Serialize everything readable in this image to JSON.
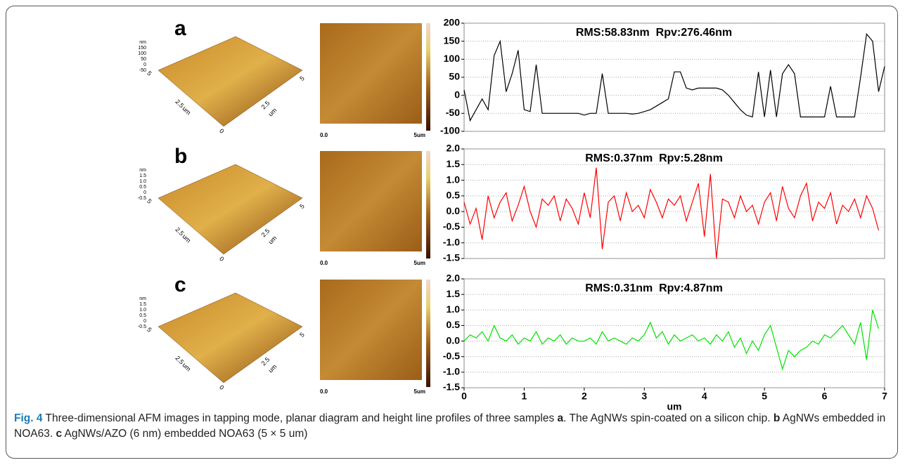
{
  "images": [
    {
      "label": "a",
      "z_labels": [
        "nm",
        "150",
        "100",
        "50",
        "0",
        "-50"
      ],
      "base_labels": [
        "5",
        "2.5",
        "um",
        "0",
        "2.5",
        "um",
        "5"
      ],
      "planar_start": "0.0",
      "planar_end": "5um"
    },
    {
      "label": "b",
      "z_labels": [
        "nm",
        "1.5",
        "1.0",
        "0.5",
        "0",
        "-0.5"
      ],
      "base_labels": [
        "5",
        "2.5",
        "um",
        "0",
        "2.5",
        "um",
        "5"
      ],
      "planar_start": "0.0",
      "planar_end": "5um"
    },
    {
      "label": "c",
      "z_labels": [
        "nm",
        "1.5",
        "1.0",
        "0.5",
        "0",
        "-0.5"
      ],
      "base_labels": [
        "5",
        "2.5",
        "um",
        "0",
        "2.5",
        "um",
        "5"
      ],
      "planar_start": "0.0",
      "planar_end": "5um"
    }
  ],
  "chart_data": [
    {
      "type": "line",
      "annotation": "RMS:58.83nm  Rpv:276.46nm",
      "x": [
        0,
        0.1,
        0.2,
        0.3,
        0.4,
        0.5,
        0.6,
        0.7,
        0.8,
        0.9,
        1,
        1.1,
        1.2,
        1.3,
        1.4,
        1.5,
        1.6,
        1.7,
        1.8,
        1.9,
        2,
        2.1,
        2.2,
        2.3,
        2.4,
        2.5,
        2.6,
        2.7,
        2.8,
        2.9,
        3,
        3.1,
        3.2,
        3.3,
        3.4,
        3.5,
        3.6,
        3.7,
        3.8,
        3.9,
        4,
        4.1,
        4.2,
        4.3,
        4.4,
        4.5,
        4.6,
        4.7,
        4.8,
        4.9,
        5,
        5.1,
        5.2,
        5.3,
        5.4,
        5.5,
        5.6,
        5.7,
        5.8,
        5.9,
        6,
        6.1,
        6.2,
        6.3,
        6.4,
        6.5,
        6.6,
        6.7,
        6.8,
        6.9,
        7
      ],
      "series": [
        {
          "color": "#000000",
          "values": [
            15,
            -70,
            -40,
            -10,
            -40,
            110,
            150,
            10,
            60,
            125,
            -40,
            -45,
            85,
            -50,
            -50,
            -50,
            -50,
            -50,
            -50,
            -50,
            -55,
            -50,
            -50,
            60,
            -50,
            -50,
            -50,
            -50,
            -52,
            -50,
            -45,
            -40,
            -30,
            -20,
            -10,
            65,
            65,
            20,
            15,
            20,
            20,
            20,
            20,
            15,
            0,
            -20,
            -40,
            -55,
            -60,
            65,
            -60,
            70,
            -60,
            60,
            85,
            60,
            -60,
            -60,
            -60,
            -60,
            -60,
            25,
            -60,
            -60,
            -60,
            -60,
            50,
            170,
            150,
            10,
            80
          ]
        }
      ],
      "xlim": [
        0,
        7
      ],
      "ylim": [
        -100,
        200
      ],
      "yticks": [
        -100,
        -50,
        0,
        50,
        100,
        150,
        200
      ],
      "grid": true
    },
    {
      "type": "line",
      "annotation": "RMS:0.37nm  Rpv:5.28nm",
      "x": [
        0,
        0.1,
        0.2,
        0.3,
        0.4,
        0.5,
        0.6,
        0.7,
        0.8,
        0.9,
        1,
        1.1,
        1.2,
        1.3,
        1.4,
        1.5,
        1.6,
        1.7,
        1.8,
        1.9,
        2,
        2.1,
        2.2,
        2.3,
        2.4,
        2.5,
        2.6,
        2.7,
        2.8,
        2.9,
        3,
        3.1,
        3.2,
        3.3,
        3.4,
        3.5,
        3.6,
        3.7,
        3.8,
        3.9,
        4,
        4.1,
        4.2,
        4.3,
        4.4,
        4.5,
        4.6,
        4.7,
        4.8,
        4.9,
        5,
        5.1,
        5.2,
        5.3,
        5.4,
        5.5,
        5.6,
        5.7,
        5.8,
        5.9,
        6,
        6.1,
        6.2,
        6.3,
        6.4,
        6.5,
        6.6,
        6.7,
        6.8,
        6.9
      ],
      "series": [
        {
          "color": "#ff0000",
          "values": [
            0.3,
            -0.4,
            0.1,
            -0.9,
            0.5,
            -0.2,
            0.3,
            0.6,
            -0.3,
            0.2,
            0.8,
            0.0,
            -0.5,
            0.4,
            0.2,
            0.5,
            -0.3,
            0.4,
            0.1,
            -0.4,
            0.6,
            -0.2,
            1.4,
            -1.2,
            0.3,
            0.5,
            -0.3,
            0.6,
            0.0,
            0.2,
            -0.2,
            0.7,
            0.3,
            -0.2,
            0.4,
            0.2,
            0.5,
            -0.3,
            0.3,
            0.9,
            -0.8,
            1.2,
            -1.5,
            0.4,
            0.3,
            -0.2,
            0.5,
            0.0,
            0.2,
            -0.4,
            0.3,
            0.6,
            -0.3,
            0.8,
            0.1,
            -0.2,
            0.5,
            0.9,
            -0.3,
            0.3,
            0.1,
            0.6,
            -0.4,
            0.2,
            0.0,
            0.4,
            -0.2,
            0.5,
            0.1,
            -0.6
          ]
        }
      ],
      "xlim": [
        0,
        7
      ],
      "ylim": [
        -1.5,
        2.0
      ],
      "yticks": [
        {
          "value": -1.5,
          "label": "-1.5"
        },
        {
          "value": -1,
          "label": "-1.0"
        },
        {
          "value": -0.5,
          "label": "-0.5"
        },
        {
          "value": 0,
          "label": "0.0"
        },
        {
          "value": 0.5,
          "label": "0.5"
        },
        {
          "value": 1,
          "label": "1.0"
        },
        {
          "value": 1.5,
          "label": "1.5"
        },
        {
          "value": 2,
          "label": "2.0"
        }
      ],
      "grid": true
    },
    {
      "type": "line",
      "annotation": "RMS:0.31nm  Rpv:4.87nm",
      "xlabel": "um",
      "x": [
        0,
        0.1,
        0.2,
        0.3,
        0.4,
        0.5,
        0.6,
        0.7,
        0.8,
        0.9,
        1,
        1.1,
        1.2,
        1.3,
        1.4,
        1.5,
        1.6,
        1.7,
        1.8,
        1.9,
        2,
        2.1,
        2.2,
        2.3,
        2.4,
        2.5,
        2.6,
        2.7,
        2.8,
        2.9,
        3,
        3.1,
        3.2,
        3.3,
        3.4,
        3.5,
        3.6,
        3.7,
        3.8,
        3.9,
        4,
        4.1,
        4.2,
        4.3,
        4.4,
        4.5,
        4.6,
        4.7,
        4.8,
        4.9,
        5,
        5.1,
        5.2,
        5.3,
        5.4,
        5.5,
        5.6,
        5.7,
        5.8,
        5.9,
        6,
        6.1,
        6.2,
        6.3,
        6.4,
        6.5,
        6.6,
        6.7,
        6.8,
        6.9
      ],
      "series": [
        {
          "color": "#00e000",
          "values": [
            0.0,
            0.2,
            0.1,
            0.3,
            0.0,
            0.5,
            0.1,
            0.0,
            0.2,
            -0.1,
            0.1,
            0.0,
            0.3,
            -0.1,
            0.1,
            0.0,
            0.2,
            -0.1,
            0.1,
            0.0,
            0.0,
            0.1,
            -0.1,
            0.3,
            0.0,
            0.1,
            0.0,
            -0.1,
            0.1,
            0.0,
            0.2,
            0.6,
            0.1,
            0.3,
            -0.1,
            0.2,
            0.0,
            0.1,
            0.2,
            0.0,
            0.1,
            -0.1,
            0.2,
            0.0,
            0.3,
            -0.2,
            0.1,
            -0.4,
            0.0,
            -0.3,
            0.2,
            0.5,
            -0.2,
            -0.9,
            -0.3,
            -0.5,
            -0.3,
            -0.2,
            0.0,
            -0.1,
            0.2,
            0.1,
            0.3,
            0.5,
            0.2,
            -0.1,
            0.6,
            -0.6,
            1.0,
            0.4
          ]
        }
      ],
      "xlim": [
        0,
        7
      ],
      "xticks": [
        0,
        1,
        2,
        3,
        4,
        5,
        6,
        7
      ],
      "ylim": [
        -1.5,
        2.0
      ],
      "yticks": [
        {
          "value": -1.5,
          "label": "-1.5"
        },
        {
          "value": -1,
          "label": "-1.0"
        },
        {
          "value": -0.5,
          "label": "-0.5"
        },
        {
          "value": 0,
          "label": "0.0"
        },
        {
          "value": 0.5,
          "label": "0.5"
        },
        {
          "value": 1,
          "label": "1.0"
        },
        {
          "value": 1.5,
          "label": "1.5"
        },
        {
          "value": 2,
          "label": "2.0"
        }
      ],
      "grid": true
    }
  ],
  "caption": {
    "label": "Fig. 4",
    "parts": [
      " Three-dimensional AFM images in tapping mode, planar diagram and height line profiles of three samples ",
      "a",
      ". The AgNWs spin-coated on a silicon chip. ",
      "b",
      " AgNWs embedded in NOA63. ",
      "c",
      " AgNWs/AZO (6 nm) embedded NOA63 (5 × 5 um)"
    ]
  }
}
